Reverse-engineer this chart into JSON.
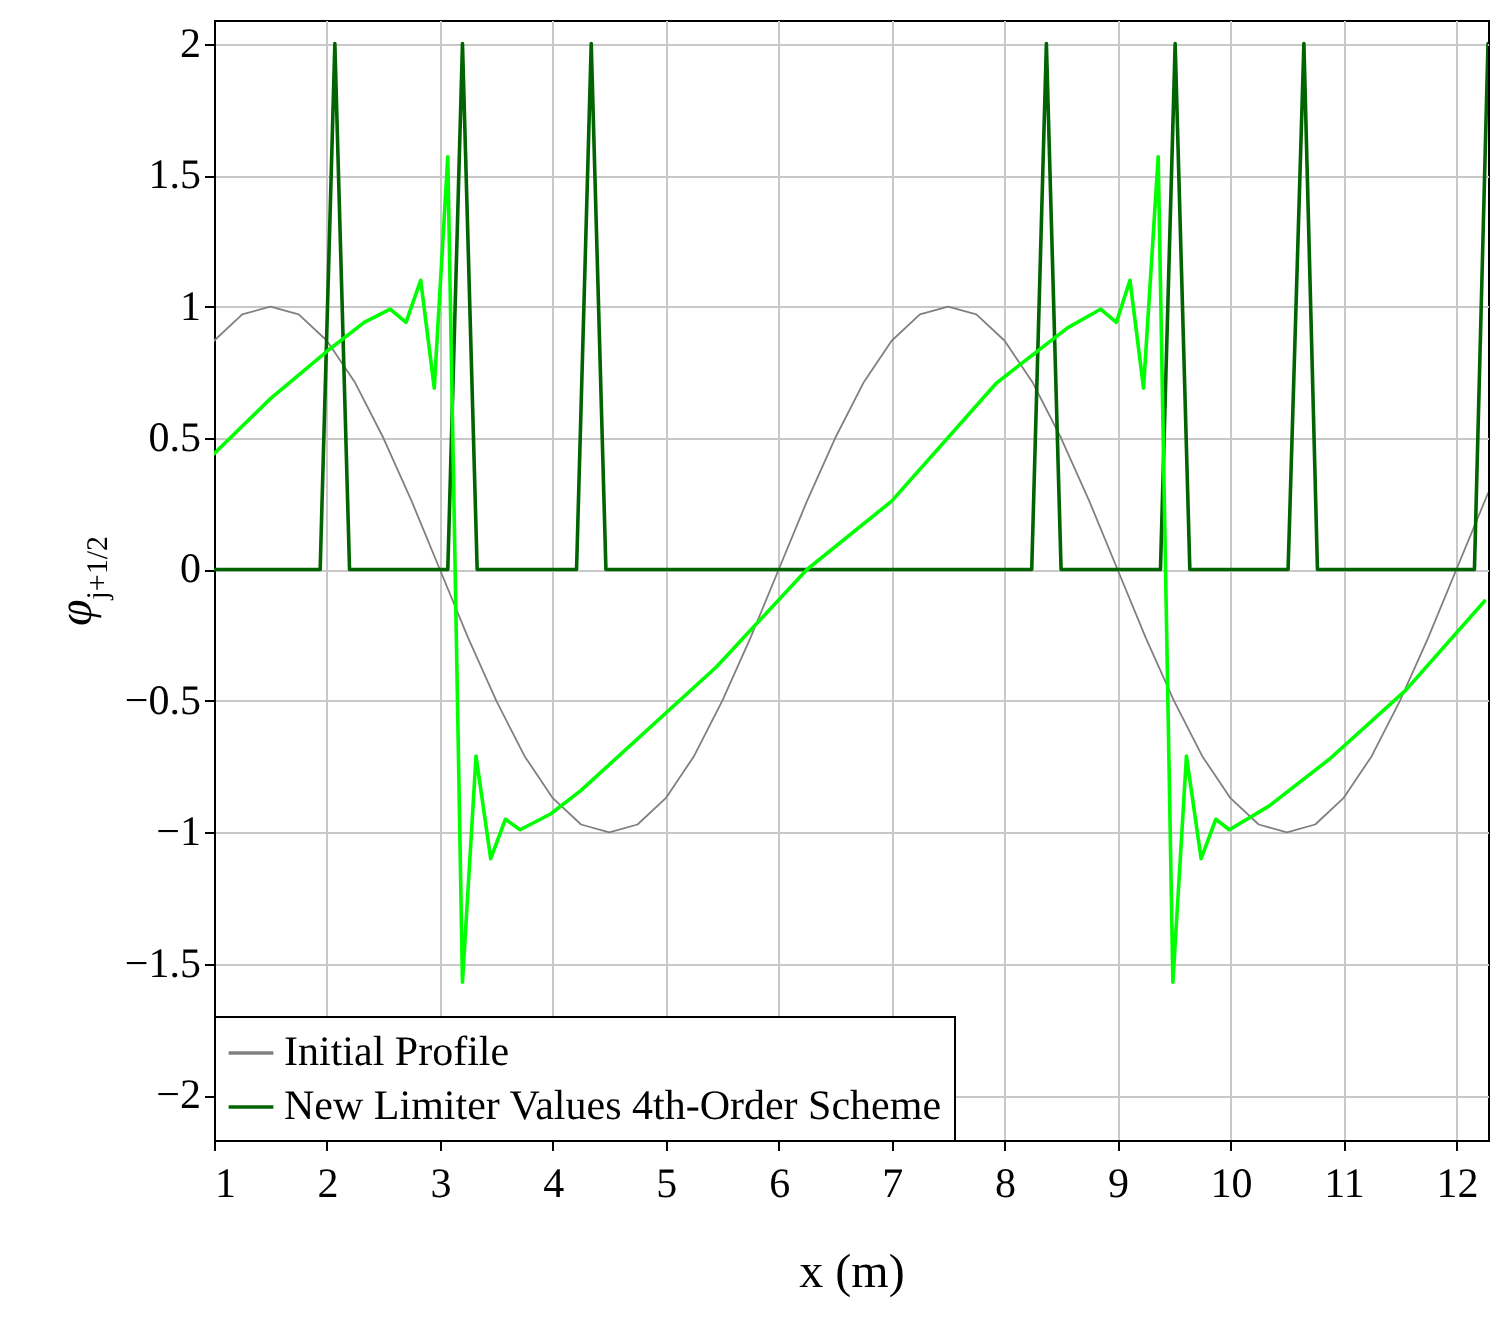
{
  "chart_data": {
    "type": "line",
    "xlabel": "x (m)",
    "ylabel": "φ$_{j+1/2}$",
    "xlim": [
      1,
      12.28
    ],
    "ylim": [
      -2.17,
      2.09
    ],
    "xticks": [
      1,
      2,
      3,
      4,
      5,
      6,
      7,
      8,
      9,
      10,
      11,
      12
    ],
    "yticks": [
      -2,
      -1.5,
      -1,
      -0.5,
      0,
      0.5,
      1,
      1.5,
      2
    ],
    "grid": true,
    "legend": "bottom left",
    "marker": "none",
    "line_style": "solid",
    "series": [
      {
        "name": "Initial Profile",
        "color": "#808080",
        "x": [
          1,
          1.25,
          1.5,
          1.75,
          2,
          2.25,
          2.5,
          2.75,
          3,
          3.25,
          3.5,
          3.75,
          4,
          4.25,
          4.5,
          4.75,
          5,
          5.25,
          5.5,
          5.75,
          6,
          6.25,
          6.5,
          6.75,
          7,
          7.25,
          7.5,
          7.75,
          8,
          8.25,
          8.5,
          8.75,
          9,
          9.25,
          9.5,
          9.75,
          10,
          10.25,
          10.5,
          10.75,
          11,
          11.25,
          11.5,
          11.75,
          12,
          12.28
        ],
        "values": [
          0.87,
          0.97,
          1,
          0.97,
          0.87,
          0.71,
          0.5,
          0.26,
          0,
          -0.26,
          -0.5,
          -0.71,
          -0.87,
          -0.97,
          -1,
          -0.97,
          -0.87,
          -0.71,
          -0.5,
          -0.26,
          0,
          0.26,
          0.5,
          0.71,
          0.87,
          0.97,
          1,
          0.97,
          0.87,
          0.71,
          0.5,
          0.26,
          0,
          -0.26,
          -0.5,
          -0.71,
          -0.87,
          -0.97,
          -1,
          -0.97,
          -0.87,
          -0.71,
          -0.5,
          -0.26,
          0,
          0.29
        ]
      },
      {
        "name": "New Limiter Values 4th-Order Scheme",
        "color": "#006400",
        "x": [
          1,
          1.94,
          2.07,
          2.2,
          3.07,
          3.2,
          3.33,
          4.21,
          4.34,
          4.47,
          8.24,
          8.37,
          8.5,
          9.38,
          9.51,
          9.64,
          10.51,
          10.65,
          10.77,
          12.16,
          12.28
        ],
        "values": [
          0,
          0,
          2,
          0,
          0,
          2,
          0,
          0,
          2,
          0,
          0,
          2,
          0,
          0,
          2,
          0,
          0,
          2,
          0,
          0,
          2
        ]
      },
      {
        "color": "#00ff00",
        "x": [
          1,
          1.5,
          2,
          2.33,
          2.56,
          2.7,
          2.83,
          2.95,
          3.07,
          3.2,
          3.32,
          3.45,
          3.58,
          3.71,
          3.98,
          4.25,
          5.45,
          6.25,
          7,
          7.93,
          8.56,
          8.85,
          8.99,
          9.11,
          9.23,
          9.36,
          9.49,
          9.61,
          9.74,
          9.87,
          9.99,
          10.34,
          10.88,
          11.55,
          12.25
        ],
        "values": [
          0.44,
          0.65,
          0.83,
          0.94,
          0.99,
          0.94,
          1.1,
          0.69,
          1.57,
          -1.57,
          -0.71,
          -1.1,
          -0.95,
          -0.99,
          -0.93,
          -0.84,
          -0.37,
          0,
          0.26,
          0.71,
          0.92,
          0.99,
          0.94,
          1.1,
          0.69,
          1.57,
          -1.57,
          -0.71,
          -1.1,
          -0.95,
          -0.99,
          -0.9,
          -0.72,
          -0.46,
          -0.12
        ]
      }
    ]
  }
}
